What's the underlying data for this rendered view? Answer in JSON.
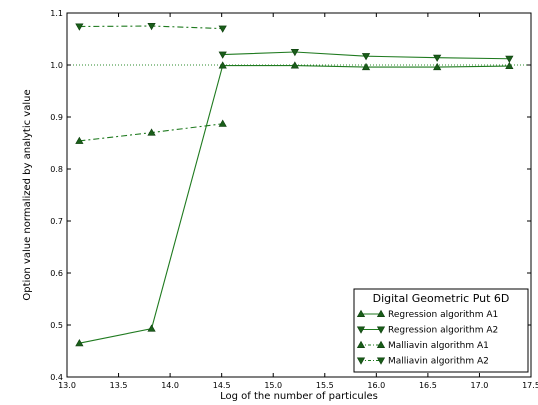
{
  "chart_data": {
    "type": "line",
    "title": "",
    "xlabel": "Log of the number of particules",
    "ylabel": "Option value normalized by analytic value",
    "xlim": [
      13.0,
      17.5
    ],
    "ylim": [
      0.4,
      1.1
    ],
    "xticks": [
      "13.0",
      "13.5",
      "14.0",
      "14.5",
      "15.0",
      "15.5",
      "16.0",
      "16.5",
      "17.0",
      "17.5"
    ],
    "yticks": [
      "0.4",
      "0.5",
      "0.6",
      "0.7",
      "0.8",
      "0.9",
      "1.0",
      "1.1"
    ],
    "grid": false,
    "reference_line": {
      "y": 1.0,
      "style": "dotted",
      "color": "#2e8b2e"
    },
    "legend": {
      "title": "Digital Geometric Put 6D",
      "placement": "lower-right"
    },
    "series": [
      {
        "name": "Regression algorithm A1",
        "marker": "triangle-up",
        "linestyle": "solid",
        "color": "#1f7a1f",
        "x": [
          13.12,
          13.82,
          14.51,
          15.21,
          15.9,
          16.59,
          17.29
        ],
        "y": [
          0.465,
          0.493,
          0.999,
          0.999,
          0.996,
          0.996,
          0.998
        ]
      },
      {
        "name": "Regression algorithm A2",
        "marker": "triangle-down",
        "linestyle": "solid",
        "color": "#1f7a1f",
        "x": [
          14.51,
          15.21,
          15.9,
          16.59,
          17.29
        ],
        "y": [
          1.02,
          1.025,
          1.017,
          1.014,
          1.012
        ]
      },
      {
        "name": "Malliavin algorithm A1",
        "marker": "triangle-up",
        "linestyle": "dashdot",
        "color": "#1f7a1f",
        "x": [
          13.12,
          13.82,
          14.51
        ],
        "y": [
          0.854,
          0.87,
          0.887
        ]
      },
      {
        "name": "Malliavin algorithm A2",
        "marker": "triangle-down",
        "linestyle": "dashdot",
        "color": "#1f7a1f",
        "x": [
          13.12,
          13.82,
          14.51
        ],
        "y": [
          1.074,
          1.075,
          1.07
        ]
      }
    ]
  }
}
